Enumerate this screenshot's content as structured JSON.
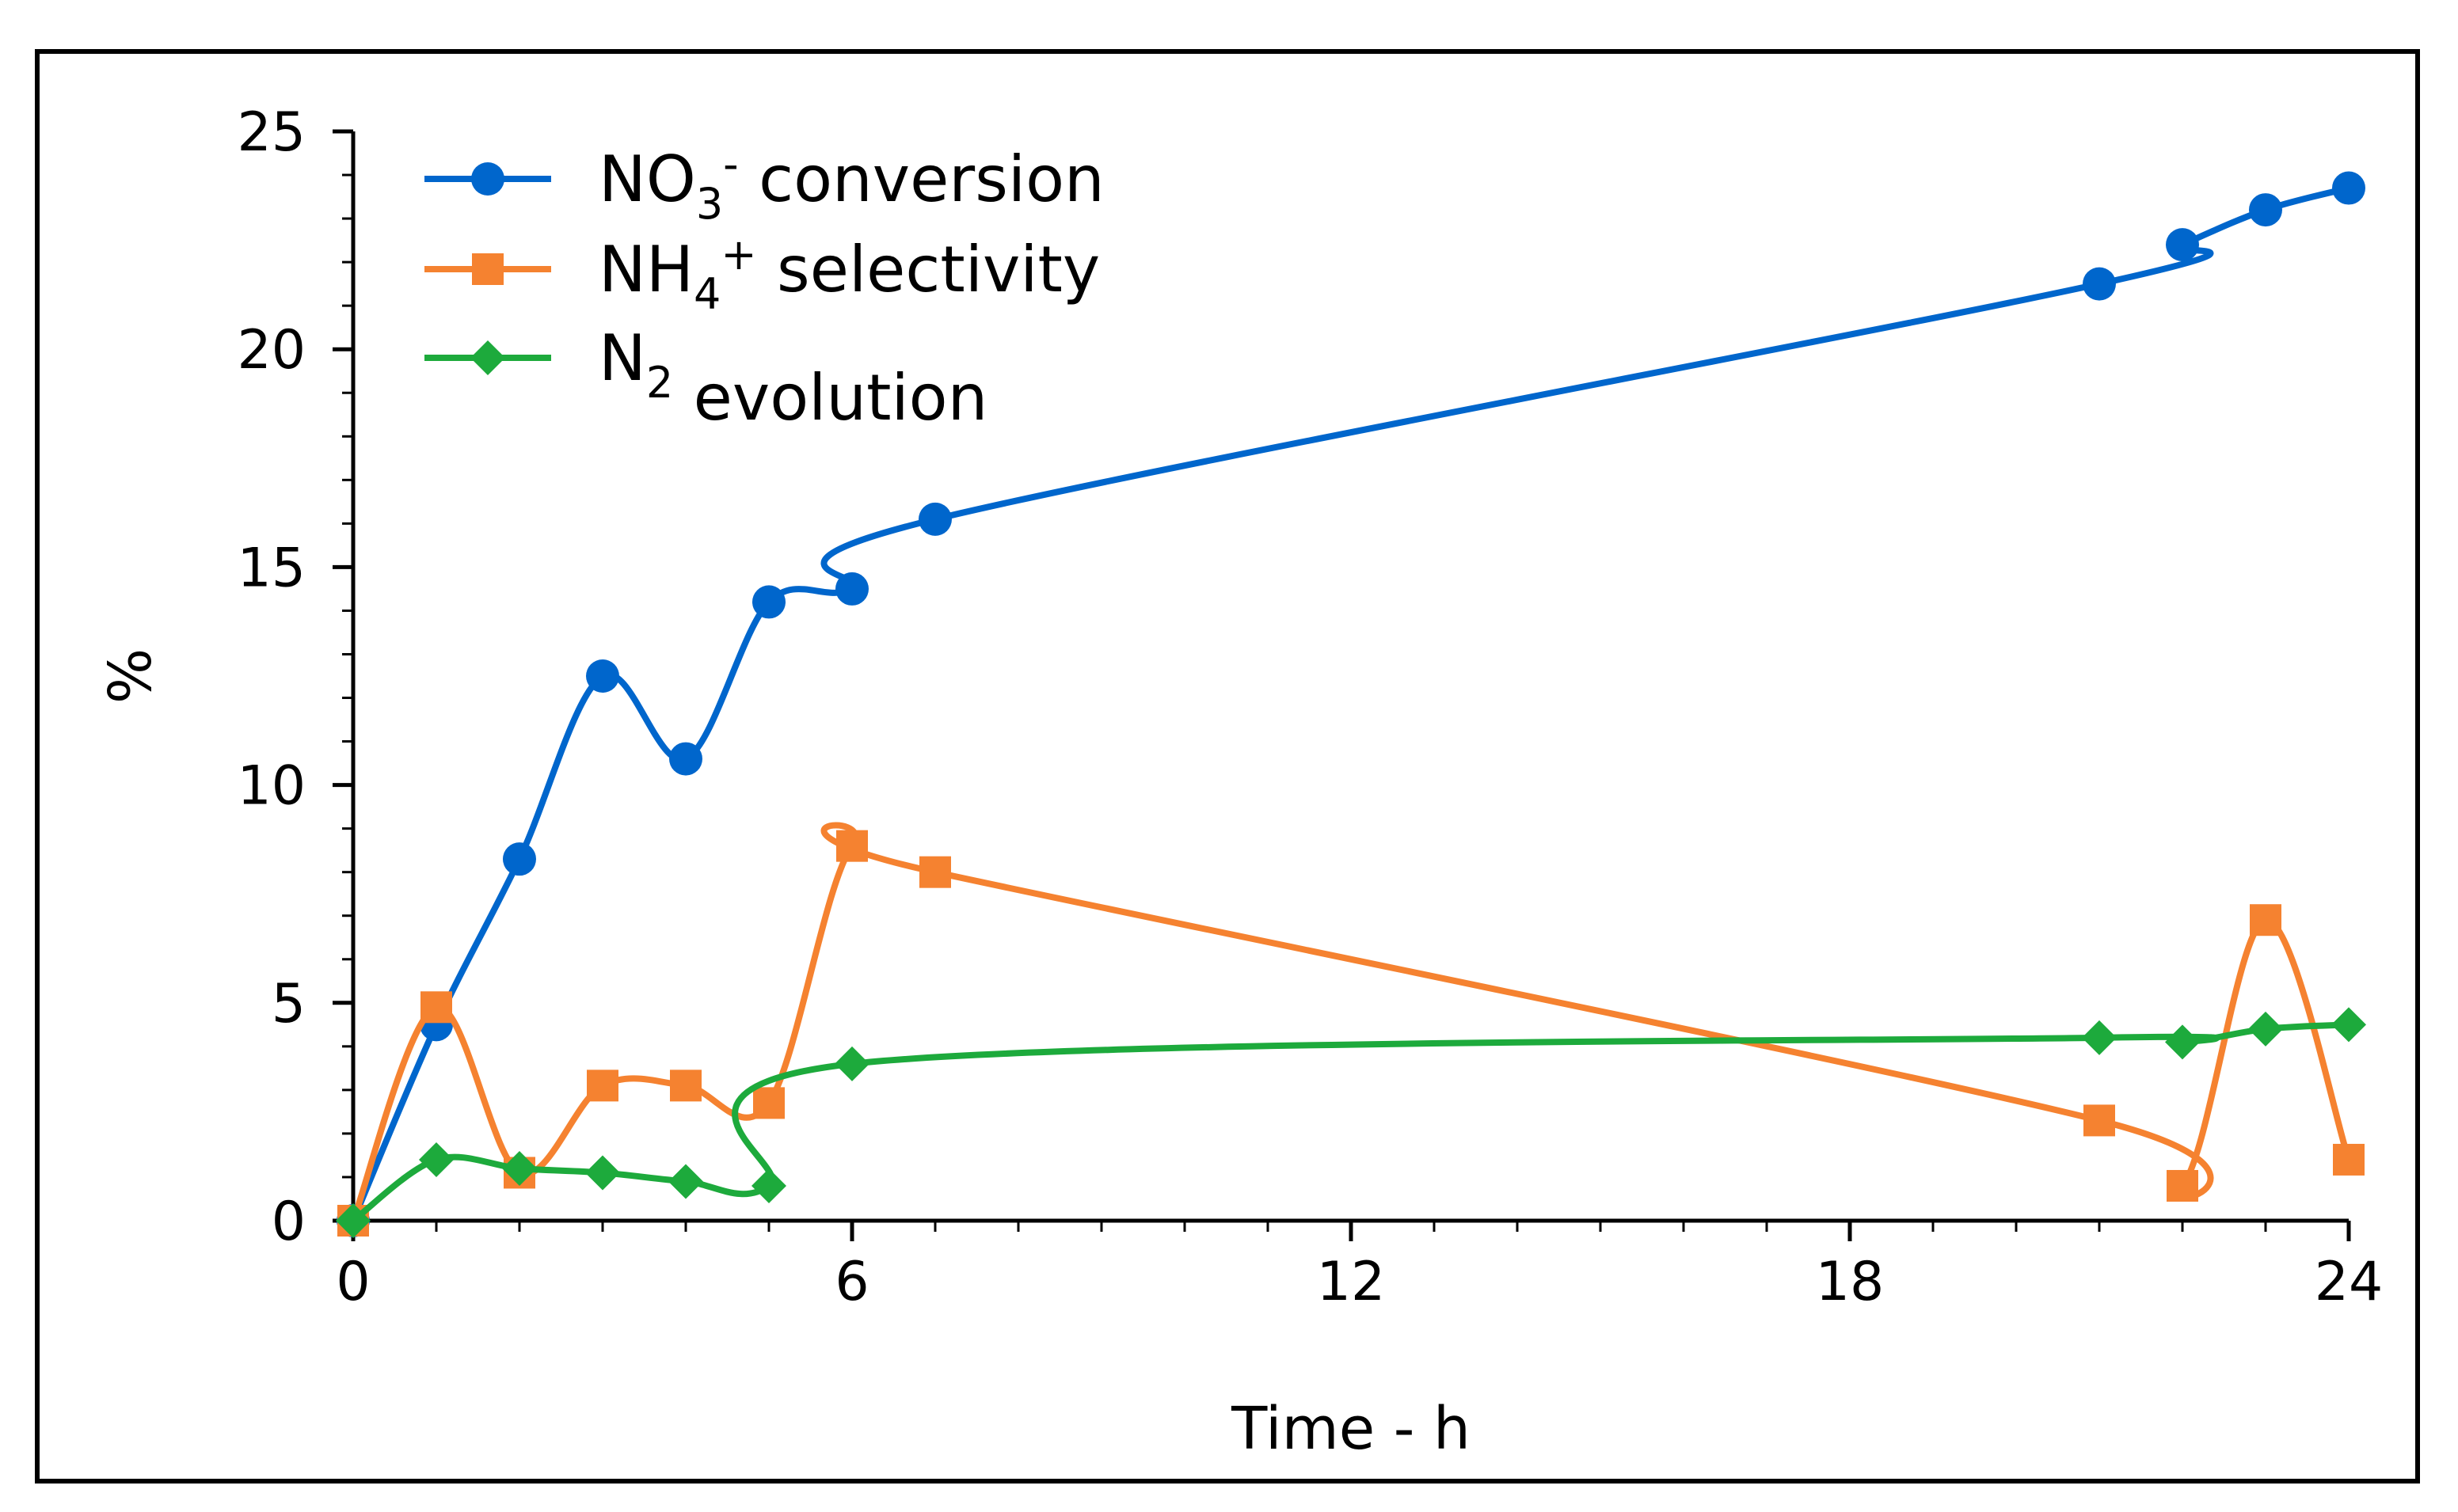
{
  "chart_data": {
    "type": "line",
    "title": "",
    "xlabel": "Time - h",
    "ylabel": "%",
    "xlim": [
      0,
      24
    ],
    "ylim": [
      0,
      25
    ],
    "xticks": [
      0,
      6,
      12,
      18,
      24
    ],
    "xtick_labels": [
      "0",
      "6",
      "12",
      "18",
      "24"
    ],
    "yticks": [
      0,
      5,
      10,
      15,
      20,
      25
    ],
    "ytick_labels": [
      "0",
      "5",
      "10",
      "15",
      "20",
      "25"
    ],
    "grid": false,
    "legend_position": "top-left",
    "series": [
      {
        "key": "no3",
        "legend": {
          "base": "NO",
          "sub": "3",
          "sup": "-",
          "rest": " conversion"
        },
        "name": "NO3- conversion",
        "color": "#0066CC",
        "marker": "circle",
        "x": [
          0,
          1,
          2,
          3,
          4,
          5,
          6,
          7,
          21,
          22,
          23,
          24
        ],
        "values": [
          0,
          4.5,
          8.3,
          12.5,
          10.6,
          14.2,
          14.5,
          16.1,
          21.5,
          22.4,
          23.2,
          23.7
        ]
      },
      {
        "key": "nh4",
        "legend": {
          "base": "NH",
          "sub": "4",
          "sup": "+",
          "rest": " selectivity"
        },
        "name": "NH4+ selectivity",
        "color": "#F58230",
        "marker": "square",
        "x": [
          0,
          1,
          2,
          3,
          4,
          5,
          6,
          7,
          21,
          22,
          23,
          24
        ],
        "values": [
          0,
          4.9,
          1.1,
          3.1,
          3.1,
          2.7,
          8.6,
          8.0,
          2.3,
          0.8,
          6.9,
          1.4
        ]
      },
      {
        "key": "n2",
        "legend": {
          "base": "N",
          "sub": "2",
          "sup": "",
          "rest": " evolution"
        },
        "name": "N2 evolution",
        "color": "#1DAA3C",
        "marker": "diamond",
        "x": [
          0,
          1,
          2,
          3,
          4,
          5,
          6,
          21,
          22,
          23,
          24
        ],
        "values": [
          0,
          1.4,
          1.2,
          1.1,
          0.9,
          0.8,
          3.6,
          4.2,
          4.1,
          4.4,
          4.5
        ]
      }
    ]
  }
}
